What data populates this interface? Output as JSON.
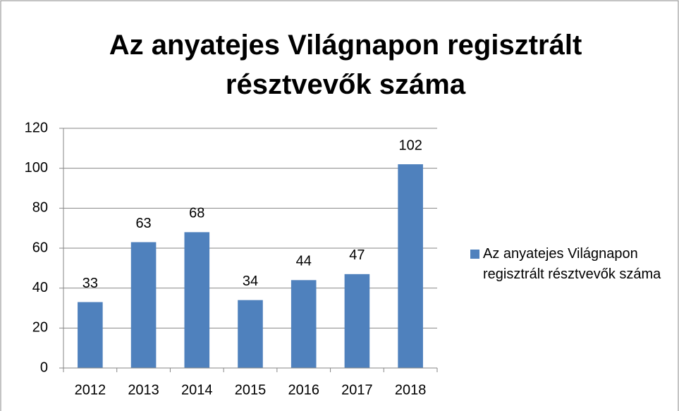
{
  "chart_data": {
    "type": "bar",
    "title": "Az anyatejes Világnapon regisztrált résztvevők száma",
    "categories": [
      "2012",
      "2013",
      "2014",
      "2015",
      "2016",
      "2017",
      "2018"
    ],
    "series": [
      {
        "name": "Az anyatejes Világnapon regisztrált résztvevők száma",
        "color": "#4f81bd",
        "values": [
          33,
          63,
          68,
          34,
          44,
          47,
          102
        ]
      }
    ],
    "ylim": [
      0,
      120
    ],
    "yticks": [
      0,
      20,
      40,
      60,
      80,
      100,
      120
    ],
    "grid": true,
    "data_labels": true,
    "legend": "right"
  }
}
